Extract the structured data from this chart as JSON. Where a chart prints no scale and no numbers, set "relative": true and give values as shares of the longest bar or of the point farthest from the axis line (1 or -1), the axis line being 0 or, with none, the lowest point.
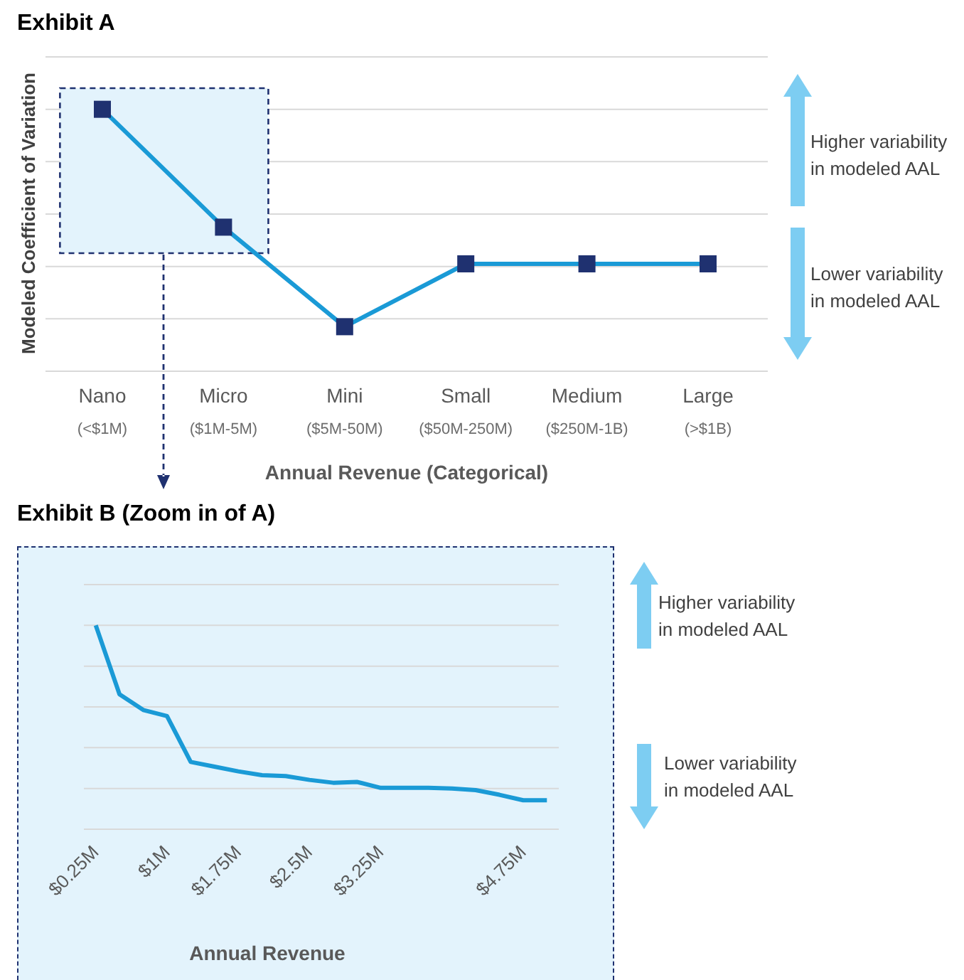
{
  "chart_data": [
    {
      "type": "line",
      "title": "Exhibit A",
      "xlabel": "Annual Revenue (Categorical)",
      "ylabel": "Modeled Coefficient of Variation",
      "relative": true,
      "grid": "y",
      "marker": "square",
      "categories": [
        "Nano\n(<$1M)",
        "Micro\n($1M-5M)",
        "Mini\n($5M-50M)",
        "Small\n($50M-250M)",
        "Medium\n($250M-1B)",
        "Large\n(>$1B)"
      ],
      "series": [
        {
          "color": "#1a9ad6",
          "values": [
            1,
            0.55,
            0.17,
            0.41,
            0.41,
            0.41
          ]
        }
      ],
      "bands": [
        {
          "axis": "x",
          "from": "Nano\n(<$1M)",
          "to": "Micro\n($1M-5M)",
          "color": "#e3f3fc"
        }
      ],
      "annotations": [
        "Higher variability\nin modeled AAL",
        "Lower variability\nin modeled AAL"
      ]
    },
    {
      "type": "line",
      "title": "Exhibit B (Zoom in of A)",
      "xlabel": "Annual Revenue",
      "relative": true,
      "grid": "y",
      "x": [
        0.25,
        0.5,
        0.75,
        1,
        1.25,
        1.5,
        1.75,
        2,
        2.25,
        2.5,
        2.75,
        3,
        3.25,
        3.5,
        3.75,
        4,
        4.25,
        4.5,
        4.75,
        5
      ],
      "xlim": [
        0.125,
        5.125
      ],
      "xticks": [
        {
          "value": 0.25,
          "label": "$0.25M"
        },
        {
          "value": 1,
          "label": "$1M"
        },
        {
          "value": 1.75,
          "label": "$1.75M"
        },
        {
          "value": 2.5,
          "label": "$2.5M"
        },
        {
          "value": 3.25,
          "label": "$3.25M"
        },
        {
          "value": 4.75,
          "label": "$4.75M"
        }
      ],
      "series": [
        {
          "color": "#1a9ad6",
          "values": [
            1,
            0.662,
            0.585,
            0.555,
            0.33,
            0.307,
            0.284,
            0.265,
            0.261,
            0.242,
            0.228,
            0.232,
            0.203,
            0.203,
            0.203,
            0.2,
            0.192,
            0.169,
            0.142,
            0.142
          ]
        }
      ],
      "annotations": [
        "Higher variability\nin modeled AAL",
        "Lower variability\nin modeled AAL"
      ]
    }
  ]
}
